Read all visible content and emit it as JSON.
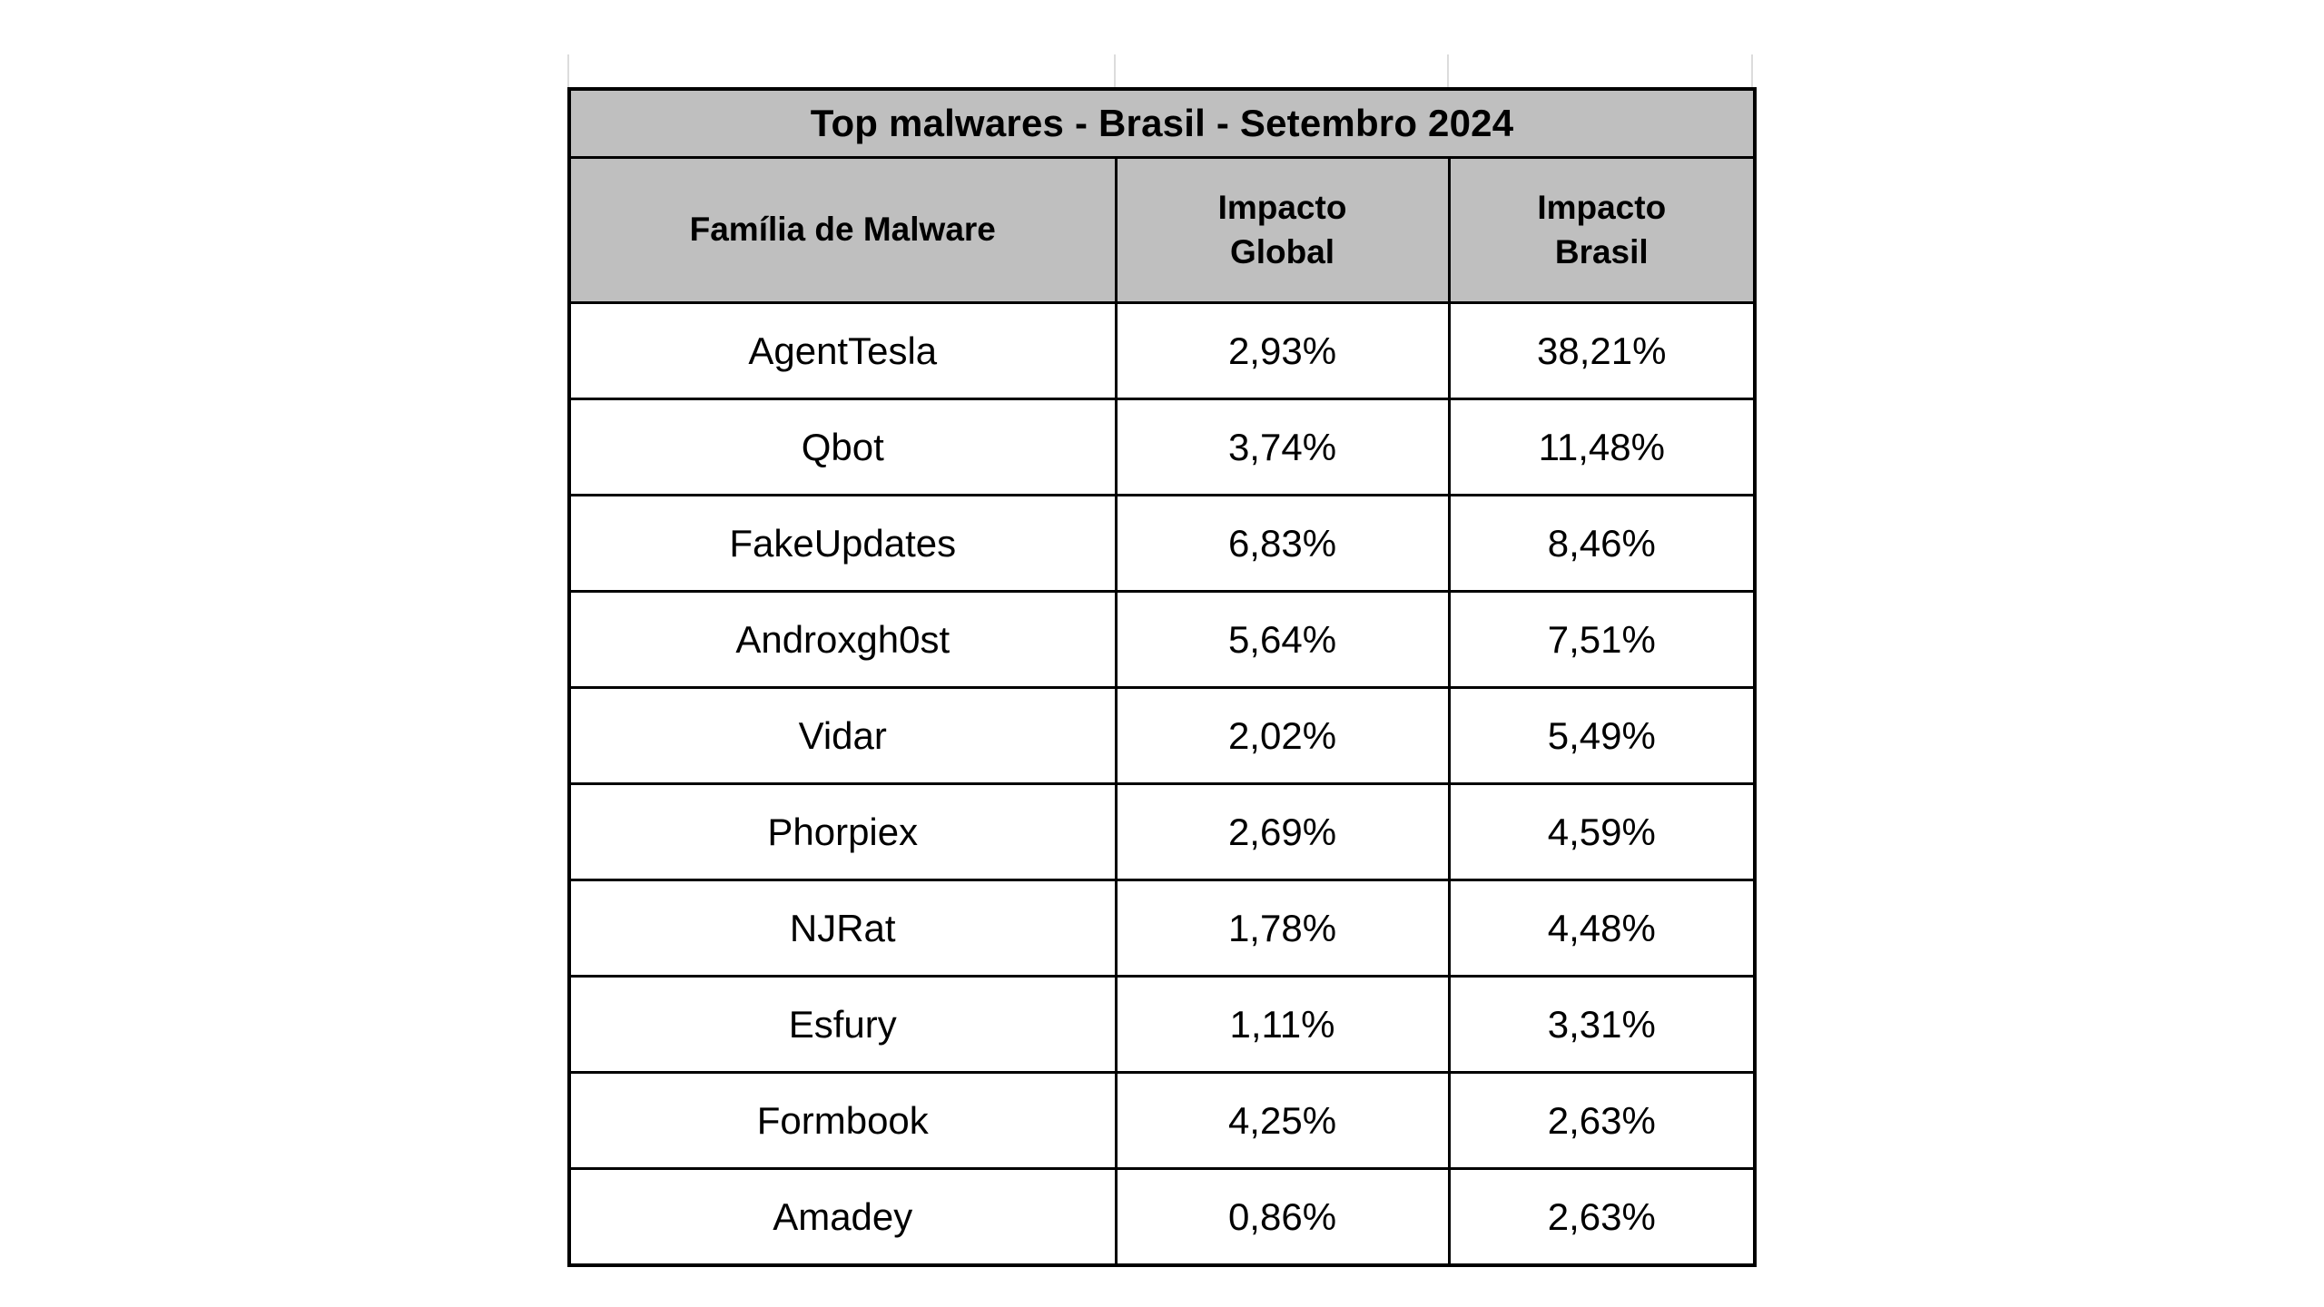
{
  "page": {
    "background_color": "#ffffff",
    "gridline_color": "#dcdcdc"
  },
  "table": {
    "title": "Top malwares - Brasil - Setembro 2024",
    "header_bg_color": "#bfbfbf",
    "border_color": "#000000",
    "text_color": "#000000",
    "columns": [
      "Família de Malware",
      "Impacto Global",
      "Impacto Brasil"
    ],
    "rows": [
      {
        "family": "AgentTesla",
        "global": "2,93%",
        "brasil": "38,21%"
      },
      {
        "family": "Qbot",
        "global": "3,74%",
        "brasil": "11,48%"
      },
      {
        "family": "FakeUpdates",
        "global": "6,83%",
        "brasil": "8,46%"
      },
      {
        "family": "Androxgh0st",
        "global": "5,64%",
        "brasil": "7,51%"
      },
      {
        "family": "Vidar",
        "global": "2,02%",
        "brasil": "5,49%"
      },
      {
        "family": "Phorpiex",
        "global": "2,69%",
        "brasil": "4,59%"
      },
      {
        "family": "NJRat",
        "global": "1,78%",
        "brasil": "4,48%"
      },
      {
        "family": "Esfury",
        "global": "1,11%",
        "brasil": "3,31%"
      },
      {
        "family": "Formbook",
        "global": "4,25%",
        "brasil": "2,63%"
      },
      {
        "family": "Amadey",
        "global": "0,86%",
        "brasil": "2,63%"
      }
    ]
  },
  "chart_data": {
    "type": "table",
    "title": "Top malwares - Brasil - Setembro 2024",
    "columns": [
      "Família de Malware",
      "Impacto Global",
      "Impacto Brasil"
    ],
    "rows": [
      [
        "AgentTesla",
        "2,93%",
        "38,21%"
      ],
      [
        "Qbot",
        "3,74%",
        "11,48%"
      ],
      [
        "FakeUpdates",
        "6,83%",
        "8,46%"
      ],
      [
        "Androxgh0st",
        "5,64%",
        "7,51%"
      ],
      [
        "Vidar",
        "2,02%",
        "5,49%"
      ],
      [
        "Phorpiex",
        "2,69%",
        "4,59%"
      ],
      [
        "NJRat",
        "1,78%",
        "4,48%"
      ],
      [
        "Esfury",
        "1,11%",
        "3,31%"
      ],
      [
        "Formbook",
        "4,25%",
        "2,63%"
      ],
      [
        "Amadey",
        "0,86%",
        "2,63%"
      ]
    ],
    "notes": "Percentages use Brazilian decimal comma notation; header rows shaded gray (#bfbfbf); values sorted descending by Impacto Brasil."
  }
}
